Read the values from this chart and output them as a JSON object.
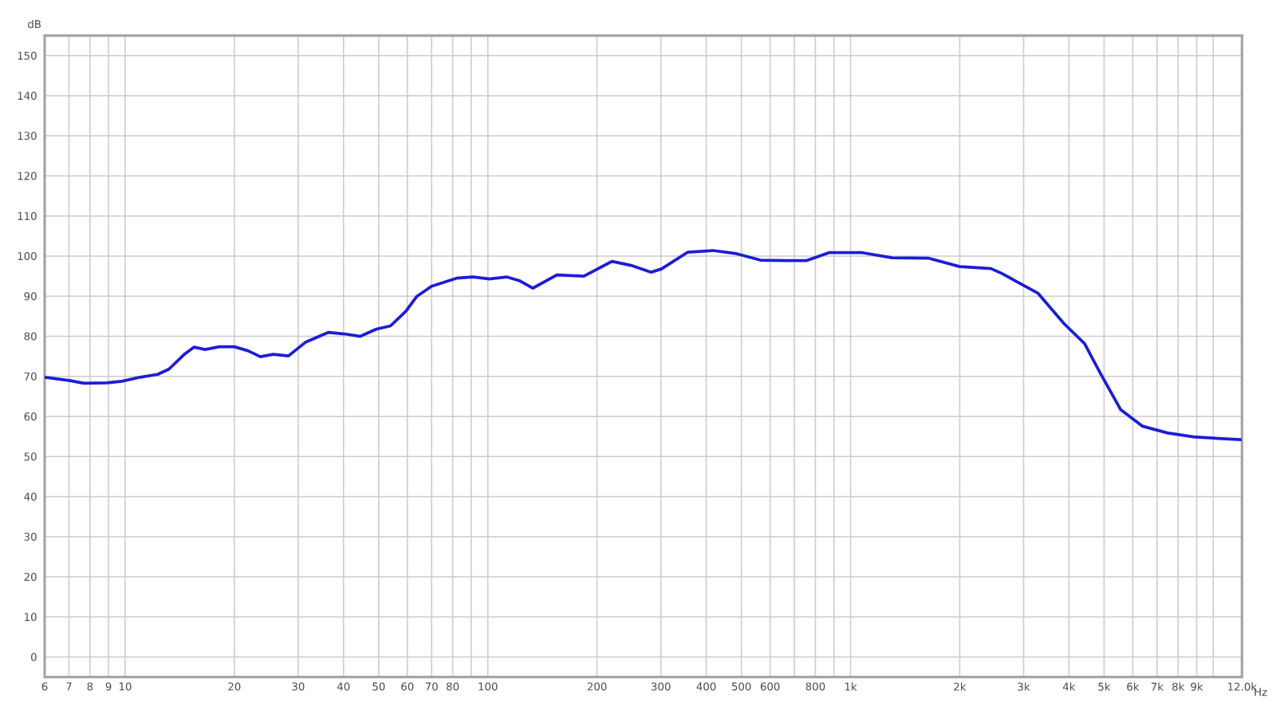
{
  "chart_data": {
    "type": "line",
    "xlabel": "Hz",
    "ylabel": "dB",
    "log": "x",
    "grid": true,
    "xlim": [
      6,
      12000
    ],
    "ylim": [
      -5,
      155
    ],
    "xticks": [
      6,
      7,
      8,
      9,
      10,
      20,
      30,
      40,
      50,
      60,
      70,
      80,
      {
        "value": 90,
        "label": null
      },
      100,
      200,
      300,
      400,
      500,
      600,
      {
        "value": 700,
        "label": null
      },
      800,
      {
        "value": 900,
        "label": null
      },
      {
        "value": 1000,
        "label": "1k"
      },
      {
        "value": 2000,
        "label": "2k"
      },
      {
        "value": 3000,
        "label": "3k"
      },
      {
        "value": 4000,
        "label": "4k"
      },
      {
        "value": 5000,
        "label": "5k"
      },
      {
        "value": 6000,
        "label": "6k"
      },
      {
        "value": 7000,
        "label": "7k"
      },
      {
        "value": 8000,
        "label": "8k"
      },
      {
        "value": 9000,
        "label": "9k"
      },
      {
        "value": 10000,
        "label": null
      },
      {
        "value": 12000,
        "label": "12.0k"
      }
    ],
    "yticks": [
      0,
      10,
      20,
      30,
      40,
      50,
      60,
      70,
      80,
      90,
      100,
      110,
      120,
      130,
      140,
      150
    ],
    "series": [
      {
        "color": "#1c1cd8",
        "x": [
          6,
          7,
          7.7,
          8.9,
          9.8,
          11,
          12.3,
          13.2,
          14.6,
          15.5,
          16.6,
          18.2,
          20,
          21.8,
          23.6,
          25.6,
          28.2,
          31.4,
          36.4,
          40.2,
          44.5,
          49.3,
          53.9,
          59.5,
          63.6,
          70,
          82,
          91,
          101,
          113,
          122,
          133,
          155,
          184,
          220,
          248,
          282,
          301,
          356,
          417,
          480,
          564,
          664,
          757,
          875,
          1070,
          1302,
          1637,
          1998,
          2437,
          2609,
          3282,
          3884,
          4417,
          4876,
          5556,
          6371,
          7472,
          8836,
          11970
        ],
        "values": [
          69.8,
          69,
          68.3,
          68.4,
          68.8,
          69.8,
          70.5,
          71.8,
          75.6,
          77.3,
          76.7,
          77.4,
          77.4,
          76.4,
          74.9,
          75.5,
          75.1,
          78.5,
          81,
          80.6,
          80,
          81.8,
          82.6,
          86.3,
          89.9,
          92.5,
          94.5,
          94.8,
          94.3,
          94.8,
          93.9,
          92,
          95.3,
          95,
          98.7,
          97.7,
          96,
          96.8,
          101,
          101.4,
          100.7,
          99,
          98.9,
          98.9,
          100.9,
          100.9,
          99.6,
          99.5,
          97.4,
          96.9,
          95.7,
          90.8,
          83.1,
          78.2,
          70.9,
          61.7,
          57.6,
          55.9,
          54.9,
          54.2
        ]
      }
    ]
  }
}
